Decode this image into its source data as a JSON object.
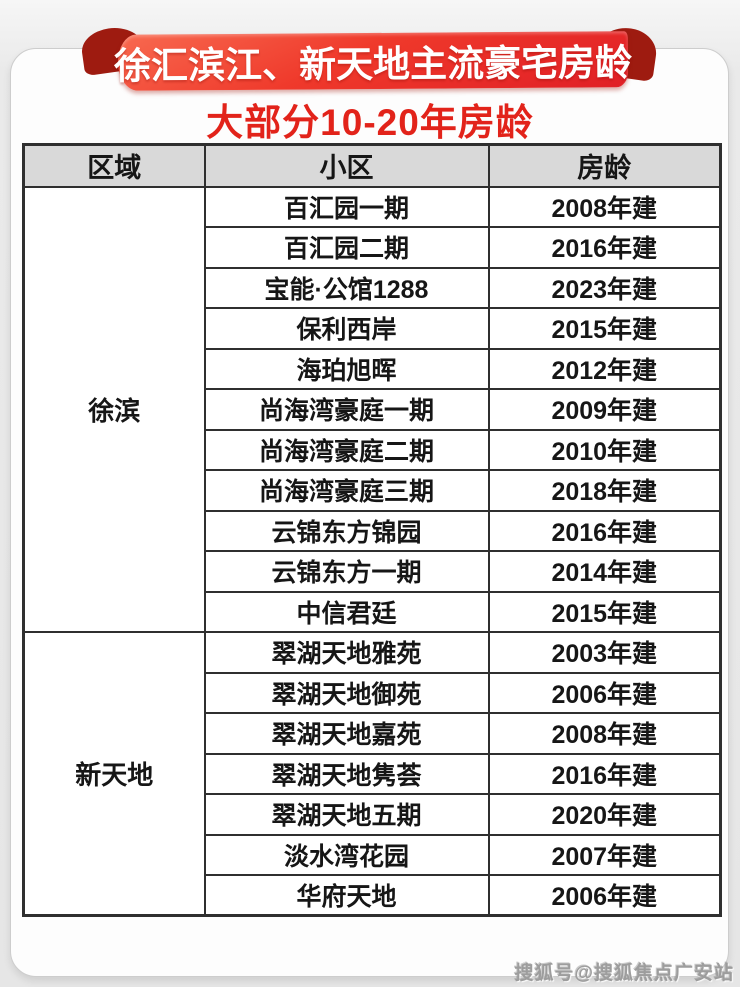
{
  "banner": {
    "title": "徐汇滨江、新天地主流豪宅房龄"
  },
  "subtitle": "大部分10-20年房龄",
  "watermark": "搜狐号@搜狐焦点广安站",
  "colors": {
    "ribbon_red": "#ef392b",
    "ribbon_red_deep": "#e01f26",
    "ribbon_fold": "#9e1b10",
    "subtitle_red": "#e2231a",
    "header_bg": "#d9d9d9",
    "table_border": "#2f2f2f"
  },
  "table": {
    "headers": [
      "区域",
      "小区",
      "房龄"
    ],
    "groups": [
      {
        "region": "徐滨",
        "rows": [
          {
            "community": "百汇园一期",
            "age": "2008年建"
          },
          {
            "community": "百汇园二期",
            "age": "2016年建"
          },
          {
            "community": "宝能·公馆1288",
            "age": "2023年建"
          },
          {
            "community": "保利西岸",
            "age": "2015年建"
          },
          {
            "community": "海珀旭晖",
            "age": "2012年建"
          },
          {
            "community": "尚海湾豪庭一期",
            "age": "2009年建"
          },
          {
            "community": "尚海湾豪庭二期",
            "age": "2010年建"
          },
          {
            "community": "尚海湾豪庭三期",
            "age": "2018年建"
          },
          {
            "community": "云锦东方锦园",
            "age": "2016年建"
          },
          {
            "community": "云锦东方一期",
            "age": "2014年建"
          },
          {
            "community": "中信君廷",
            "age": "2015年建"
          }
        ]
      },
      {
        "region": "新天地",
        "rows": [
          {
            "community": "翠湖天地雅苑",
            "age": "2003年建"
          },
          {
            "community": "翠湖天地御苑",
            "age": "2006年建"
          },
          {
            "community": "翠湖天地嘉苑",
            "age": "2008年建"
          },
          {
            "community": "翠湖天地隽荟",
            "age": "2016年建"
          },
          {
            "community": "翠湖天地五期",
            "age": "2020年建"
          },
          {
            "community": "淡水湾花园",
            "age": "2007年建"
          },
          {
            "community": "华府天地",
            "age": "2006年建"
          }
        ]
      }
    ]
  },
  "chart_data": {
    "type": "table",
    "title": "徐汇滨江、新天地主流豪宅房龄",
    "subtitle": "大部分10-20年房龄",
    "columns": [
      "区域",
      "小区",
      "房龄"
    ],
    "rows": [
      [
        "徐滨",
        "百汇园一期",
        "2008年建"
      ],
      [
        "徐滨",
        "百汇园二期",
        "2016年建"
      ],
      [
        "徐滨",
        "宝能·公馆1288",
        "2023年建"
      ],
      [
        "徐滨",
        "保利西岸",
        "2015年建"
      ],
      [
        "徐滨",
        "海珀旭晖",
        "2012年建"
      ],
      [
        "徐滨",
        "尚海湾豪庭一期",
        "2009年建"
      ],
      [
        "徐滨",
        "尚海湾豪庭二期",
        "2010年建"
      ],
      [
        "徐滨",
        "尚海湾豪庭三期",
        "2018年建"
      ],
      [
        "徐滨",
        "云锦东方锦园",
        "2016年建"
      ],
      [
        "徐滨",
        "云锦东方一期",
        "2014年建"
      ],
      [
        "徐滨",
        "中信君廷",
        "2015年建"
      ],
      [
        "新天地",
        "翠湖天地雅苑",
        "2003年建"
      ],
      [
        "新天地",
        "翠湖天地御苑",
        "2006年建"
      ],
      [
        "新天地",
        "翠湖天地嘉苑",
        "2008年建"
      ],
      [
        "新天地",
        "翠湖天地隽荟",
        "2016年建"
      ],
      [
        "新天地",
        "翠湖天地五期",
        "2020年建"
      ],
      [
        "新天地",
        "淡水湾花园",
        "2007年建"
      ],
      [
        "新天地",
        "华府天地",
        "2006年建"
      ]
    ]
  }
}
